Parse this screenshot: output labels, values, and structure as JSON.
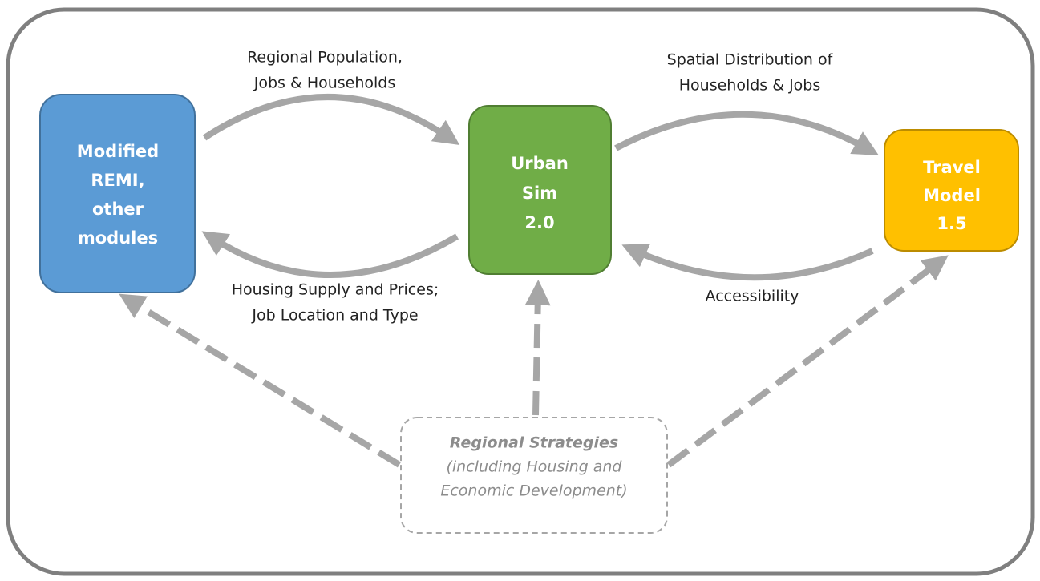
{
  "nodes": [
    {
      "id": "remi",
      "lines": [
        "Modified",
        "REMI,",
        "other",
        "modules"
      ]
    },
    {
      "id": "urbansim",
      "lines": [
        "Urban",
        "Sim",
        "2.0"
      ]
    },
    {
      "id": "travel",
      "lines": [
        "Travel",
        "Model",
        "1.5"
      ]
    },
    {
      "id": "strategies",
      "lines": [
        "Regional Strategies",
        "(including Housing and",
        "Economic Development)"
      ]
    }
  ],
  "edge_labels": [
    {
      "lines": [
        "Regional Population,",
        "Jobs & Households"
      ]
    },
    {
      "lines": [
        "Housing Supply and Prices;",
        "Job Location and Type"
      ]
    },
    {
      "lines": [
        "Spatial Distribution of",
        "Households & Jobs"
      ]
    },
    {
      "lines": [
        "Accessibility"
      ]
    }
  ]
}
